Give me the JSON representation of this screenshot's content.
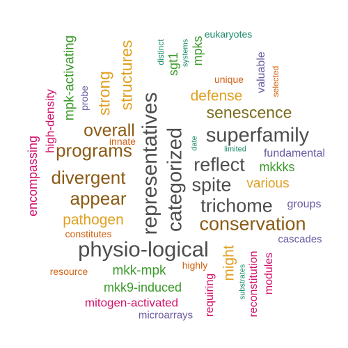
{
  "colors": {
    "grey": "#4d4d4d",
    "brown": "#8b5a14",
    "olive": "#7a6a1a",
    "orange": "#e0a020",
    "green": "#3a9a2a",
    "magenta": "#d0106a",
    "purple": "#6a5aa0",
    "darkorange": "#d06010",
    "teal": "#1a8a6a",
    "background": "#ffffff"
  },
  "words": [
    {
      "text": "physio-logical",
      "color": "grey"
    },
    {
      "text": "representatives",
      "color": "grey"
    },
    {
      "text": "categorized",
      "color": "grey"
    },
    {
      "text": "superfamily",
      "color": "grey"
    },
    {
      "text": "conservation",
      "color": "brown"
    },
    {
      "text": "trichome",
      "color": "grey"
    },
    {
      "text": "reflect",
      "color": "grey"
    },
    {
      "text": "spite",
      "color": "grey"
    },
    {
      "text": "programs",
      "color": "brown"
    },
    {
      "text": "divergent",
      "color": "brown"
    },
    {
      "text": "appear",
      "color": "brown"
    },
    {
      "text": "overall",
      "color": "brown"
    },
    {
      "text": "senescence",
      "color": "olive"
    },
    {
      "text": "structures",
      "color": "orange"
    },
    {
      "text": "strong",
      "color": "orange"
    },
    {
      "text": "pathogen",
      "color": "orange"
    },
    {
      "text": "defense",
      "color": "orange"
    },
    {
      "text": "might",
      "color": "orange"
    },
    {
      "text": "various",
      "color": "orange"
    },
    {
      "text": "mpk-activating",
      "color": "green"
    },
    {
      "text": "mkk-mpk",
      "color": "green"
    },
    {
      "text": "mkk9-induced",
      "color": "green"
    },
    {
      "text": "mkkks",
      "color": "green"
    },
    {
      "text": "mpks",
      "color": "green"
    },
    {
      "text": "sgt1",
      "color": "green"
    },
    {
      "text": "encompassing",
      "color": "magenta"
    },
    {
      "text": "high-density",
      "color": "magenta"
    },
    {
      "text": "mitogen-activated",
      "color": "magenta"
    },
    {
      "text": "requiring",
      "color": "magenta"
    },
    {
      "text": "reconstitution",
      "color": "magenta"
    },
    {
      "text": "modules",
      "color": "magenta"
    },
    {
      "text": "valuable",
      "color": "purple"
    },
    {
      "text": "fundamental",
      "color": "purple"
    },
    {
      "text": "groups",
      "color": "purple"
    },
    {
      "text": "cascades",
      "color": "purple"
    },
    {
      "text": "microarrays",
      "color": "purple"
    },
    {
      "text": "probe",
      "color": "purple"
    },
    {
      "text": "constitutes",
      "color": "darkorange"
    },
    {
      "text": "resource",
      "color": "darkorange"
    },
    {
      "text": "highly",
      "color": "darkorange"
    },
    {
      "text": "innate",
      "color": "darkorange"
    },
    {
      "text": "unique",
      "color": "darkorange"
    },
    {
      "text": "selected",
      "color": "darkorange"
    },
    {
      "text": "eukaryotes",
      "color": "teal"
    },
    {
      "text": "distinct",
      "color": "teal"
    },
    {
      "text": "systems",
      "color": "teal"
    },
    {
      "text": "date",
      "color": "teal"
    },
    {
      "text": "limited",
      "color": "teal"
    },
    {
      "text": "substrates",
      "color": "teal"
    }
  ]
}
